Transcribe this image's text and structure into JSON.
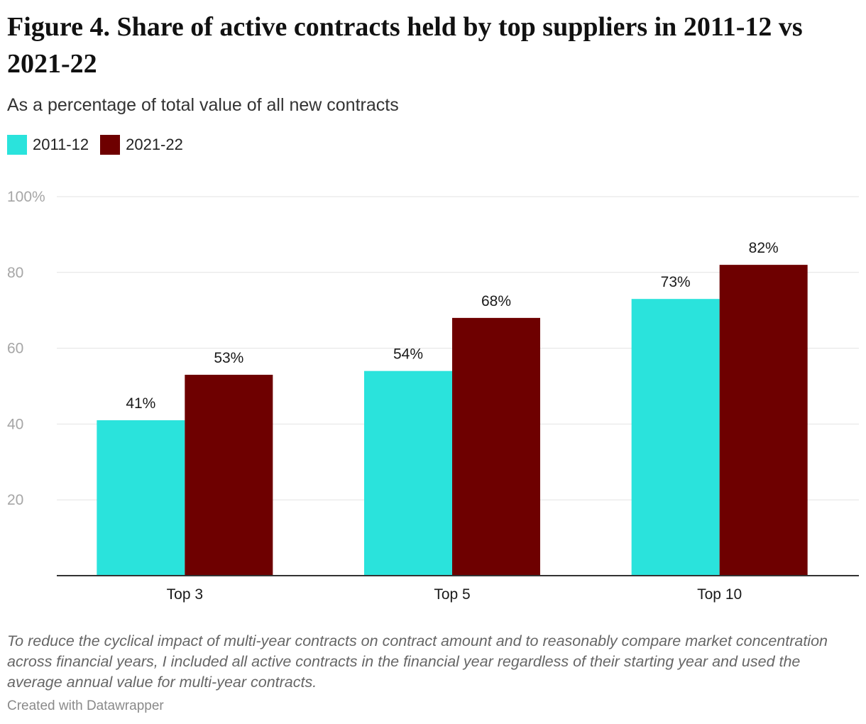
{
  "title": "Figure 4. Share of active contracts held by top suppliers in 2011-12 vs 2021-22",
  "subtitle": "As a percentage of total value of all new contracts",
  "notes": "To reduce the cyclical impact of multi-year contracts on contract amount and to reasonably compare market concentration across financial years, I included all active contracts in the financial year regardless of their starting year and used the average annual value for multi-year contracts.",
  "credit": "Created with Datawrapper",
  "chart_data": {
    "type": "bar",
    "title": "Figure 4. Share of active contracts held by top suppliers in 2011-12 vs 2021-22",
    "subtitle": "As a percentage of total value of all new contracts",
    "categories": [
      "Top 3",
      "Top 5",
      "Top 10"
    ],
    "series": [
      {
        "name": "2011-12",
        "values": [
          41,
          54,
          73
        ],
        "labels": [
          "41%",
          "54%",
          "73%"
        ],
        "color": "#2ae3dc"
      },
      {
        "name": "2021-22",
        "values": [
          53,
          68,
          82
        ],
        "labels": [
          "53%",
          "68%",
          "82%"
        ],
        "color": "#6e0000"
      }
    ],
    "ylim": [
      0,
      100
    ],
    "yticks": [
      20,
      40,
      60,
      80,
      100
    ],
    "ytick_labels": [
      "20",
      "40",
      "60",
      "80",
      "100%"
    ],
    "grid": true,
    "legend": "top-left",
    "xlabel": "",
    "ylabel": ""
  }
}
